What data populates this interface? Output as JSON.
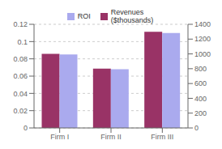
{
  "chart_data": {
    "type": "bar",
    "categories": [
      "Firm I",
      "Firm II",
      "Firm III"
    ],
    "series": [
      {
        "name": "Revenues\n($thousands)",
        "color": "#993366",
        "values": [
          1000,
          800,
          1300
        ],
        "axis": "y2"
      },
      {
        "name": "ROI",
        "color": "#aaaaee",
        "values": [
          0.085,
          0.068,
          0.11
        ]
      }
    ],
    "ylim": [
      0,
      0.12
    ],
    "yticks": [
      0,
      0.02,
      0.04,
      0.06,
      0.08,
      0.1,
      0.12
    ],
    "y2lim": [
      0,
      1400
    ],
    "y2ticks": [
      0,
      200,
      400,
      600,
      800,
      1000,
      1200,
      1400
    ],
    "grid": true,
    "legend": "top"
  }
}
